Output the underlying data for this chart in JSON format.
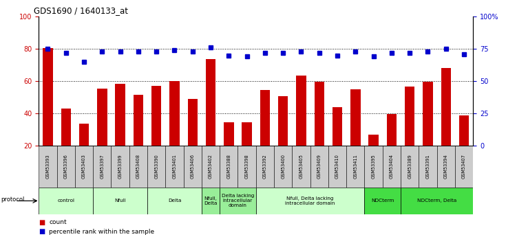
{
  "title": "GDS1690 / 1640133_at",
  "samples": [
    "GSM53393",
    "GSM53396",
    "GSM53403",
    "GSM53397",
    "GSM53399",
    "GSM53408",
    "GSM53390",
    "GSM53401",
    "GSM53406",
    "GSM53402",
    "GSM53388",
    "GSM53398",
    "GSM53392",
    "GSM53400",
    "GSM53405",
    "GSM53409",
    "GSM53410",
    "GSM53411",
    "GSM53395",
    "GSM53404",
    "GSM53389",
    "GSM53391",
    "GSM53394",
    "GSM53407"
  ],
  "counts": [
    80.5,
    43.0,
    33.5,
    55.5,
    58.5,
    51.5,
    57.0,
    60.0,
    49.0,
    73.5,
    34.5,
    34.5,
    54.5,
    50.5,
    63.5,
    59.5,
    44.0,
    55.0,
    27.0,
    39.5,
    56.5,
    59.5,
    68.0,
    39.0
  ],
  "percentiles": [
    75,
    72,
    65,
    73,
    73,
    73,
    73,
    74,
    73,
    76,
    70,
    69,
    72,
    72,
    73,
    72,
    70,
    73,
    69,
    72,
    72,
    73,
    75,
    71
  ],
  "ylim_left": [
    20,
    100
  ],
  "ylim_right": [
    0,
    100
  ],
  "yticks_left": [
    20,
    40,
    60,
    80,
    100
  ],
  "yticks_right": [
    0,
    25,
    50,
    75,
    100
  ],
  "ytick_labels_right": [
    "0",
    "25",
    "50",
    "75",
    "100%"
  ],
  "bar_color": "#cc0000",
  "dot_color": "#0000cc",
  "protocol_groups": [
    {
      "label": "control",
      "start": 0,
      "end": 3,
      "color": "#ccffcc"
    },
    {
      "label": "Nfull",
      "start": 3,
      "end": 6,
      "color": "#ccffcc"
    },
    {
      "label": "Delta",
      "start": 6,
      "end": 9,
      "color": "#ccffcc"
    },
    {
      "label": "Nfull,\nDelta",
      "start": 9,
      "end": 10,
      "color": "#99ee99"
    },
    {
      "label": "Delta lacking\nintracellular\ndomain",
      "start": 10,
      "end": 12,
      "color": "#99ee99"
    },
    {
      "label": "Nfull, Delta lacking\nintracellular domain",
      "start": 12,
      "end": 18,
      "color": "#ccffcc"
    },
    {
      "label": "NDCterm",
      "start": 18,
      "end": 20,
      "color": "#44dd44"
    },
    {
      "label": "NDCterm, Delta",
      "start": 20,
      "end": 24,
      "color": "#44dd44"
    }
  ],
  "bg_color": "#ffffff",
  "tick_color_left": "#cc0000",
  "tick_color_right": "#0000cc",
  "sample_box_color": "#cccccc",
  "grid_yticks": [
    40,
    60,
    80
  ]
}
